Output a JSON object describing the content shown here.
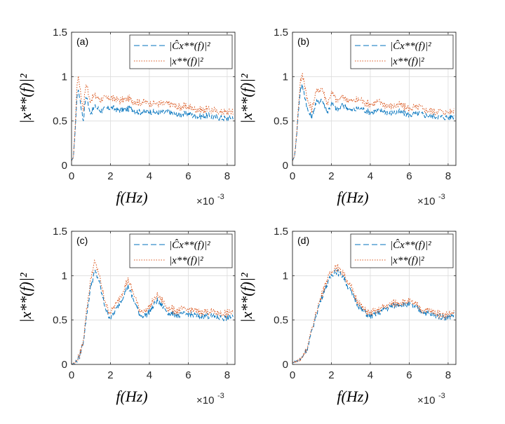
{
  "chart_data": [
    {
      "type": "line",
      "panel_label": "(a)",
      "xlabel": "f(Hz)",
      "x_scale_label": "×10",
      "x_scale_exp": "-3",
      "ylabel": "|x**(f)|²",
      "xlim": [
        0,
        8.4
      ],
      "ylim": [
        0,
        1.5
      ],
      "xticks": [
        "0",
        "2",
        "4",
        "6",
        "8"
      ],
      "yticks": [
        "0",
        "0.5",
        "1",
        "1.5"
      ],
      "grid": true,
      "legend_position": "top-right",
      "series": [
        {
          "name": "|Ĉx**(f)|²",
          "color": "#0072BD",
          "style": "dashed",
          "x": [
            0,
            0.1,
            0.2,
            0.3,
            0.4,
            0.5,
            0.6,
            0.7,
            0.8,
            0.9,
            1.0,
            1.2,
            1.5,
            2.0,
            2.5,
            3.0,
            3.5,
            4.0,
            4.5,
            5.0,
            5.5,
            6.0,
            6.5,
            7.0,
            7.5,
            8.0,
            8.3
          ],
          "y": [
            0.05,
            0.1,
            0.45,
            0.85,
            0.8,
            0.65,
            0.5,
            0.72,
            0.78,
            0.62,
            0.6,
            0.66,
            0.62,
            0.65,
            0.62,
            0.64,
            0.6,
            0.61,
            0.59,
            0.6,
            0.57,
            0.58,
            0.55,
            0.56,
            0.54,
            0.53,
            0.55
          ]
        },
        {
          "name": "|x**(f)|²",
          "color": "#D95319",
          "style": "dotted",
          "x": [
            0,
            0.1,
            0.2,
            0.3,
            0.4,
            0.5,
            0.6,
            0.7,
            0.8,
            0.9,
            1.0,
            1.2,
            1.5,
            2.0,
            2.5,
            3.0,
            3.5,
            4.0,
            4.5,
            5.0,
            5.5,
            6.0,
            6.5,
            7.0,
            7.5,
            8.0,
            8.3
          ],
          "y": [
            0.05,
            0.1,
            0.5,
            1.0,
            0.95,
            0.78,
            0.62,
            0.86,
            0.92,
            0.76,
            0.74,
            0.79,
            0.74,
            0.76,
            0.73,
            0.75,
            0.71,
            0.71,
            0.69,
            0.69,
            0.66,
            0.66,
            0.63,
            0.63,
            0.61,
            0.6,
            0.62
          ]
        }
      ]
    },
    {
      "type": "line",
      "panel_label": "(b)",
      "xlabel": "f(Hz)",
      "x_scale_label": "×10",
      "x_scale_exp": "-3",
      "ylabel": "|x**(f)|²",
      "xlim": [
        0,
        8.4
      ],
      "ylim": [
        0,
        1.5
      ],
      "xticks": [
        "0",
        "2",
        "4",
        "6",
        "8"
      ],
      "yticks": [
        "0",
        "0.5",
        "1",
        "1.5"
      ],
      "grid": true,
      "legend_position": "top-right",
      "series": [
        {
          "name": "|Ĉx**(f)|²",
          "color": "#0072BD",
          "style": "dashed",
          "x": [
            0,
            0.1,
            0.2,
            0.3,
            0.4,
            0.5,
            0.6,
            0.8,
            1.0,
            1.2,
            1.5,
            1.8,
            2.0,
            2.3,
            2.6,
            3.0,
            3.5,
            4.0,
            4.5,
            5.0,
            5.5,
            6.0,
            6.5,
            7.0,
            7.5,
            8.0,
            8.3
          ],
          "y": [
            0.05,
            0.1,
            0.3,
            0.6,
            0.85,
            0.9,
            0.82,
            0.6,
            0.55,
            0.7,
            0.75,
            0.6,
            0.7,
            0.62,
            0.68,
            0.62,
            0.64,
            0.6,
            0.62,
            0.59,
            0.6,
            0.57,
            0.58,
            0.56,
            0.55,
            0.54,
            0.55
          ]
        },
        {
          "name": "|x**(f)|²",
          "color": "#D95319",
          "style": "dotted",
          "x": [
            0,
            0.1,
            0.2,
            0.3,
            0.4,
            0.5,
            0.6,
            0.8,
            1.0,
            1.2,
            1.5,
            1.8,
            2.0,
            2.3,
            2.6,
            3.0,
            3.5,
            4.0,
            4.5,
            5.0,
            5.5,
            6.0,
            6.5,
            7.0,
            7.5,
            8.0,
            8.3
          ],
          "y": [
            0.05,
            0.1,
            0.32,
            0.65,
            0.95,
            1.02,
            0.95,
            0.7,
            0.64,
            0.82,
            0.88,
            0.7,
            0.82,
            0.72,
            0.78,
            0.72,
            0.74,
            0.69,
            0.71,
            0.67,
            0.68,
            0.64,
            0.65,
            0.62,
            0.61,
            0.6,
            0.62
          ]
        }
      ]
    },
    {
      "type": "line",
      "panel_label": "(c)",
      "xlabel": "f(Hz)",
      "x_scale_label": "×10",
      "x_scale_exp": "-3",
      "ylabel": "|x**(f)|²",
      "xlim": [
        0,
        8.4
      ],
      "ylim": [
        0,
        1.5
      ],
      "xticks": [
        "0",
        "2",
        "4",
        "6",
        "8"
      ],
      "yticks": [
        "0",
        "0.5",
        "1",
        "1.5"
      ],
      "grid": true,
      "legend_position": "top-right",
      "series": [
        {
          "name": "|Ĉx**(f)|²",
          "color": "#0072BD",
          "style": "dashed",
          "x": [
            0,
            0.2,
            0.4,
            0.6,
            0.8,
            1.0,
            1.2,
            1.4,
            1.6,
            1.8,
            2.0,
            2.3,
            2.6,
            2.9,
            3.2,
            3.5,
            3.8,
            4.1,
            4.4,
            4.7,
            5.0,
            5.5,
            6.0,
            6.5,
            7.0,
            7.5,
            8.0,
            8.3
          ],
          "y": [
            0.0,
            0.02,
            0.08,
            0.25,
            0.6,
            0.9,
            1.05,
            0.95,
            0.75,
            0.6,
            0.52,
            0.62,
            0.75,
            0.88,
            0.72,
            0.56,
            0.55,
            0.62,
            0.72,
            0.65,
            0.58,
            0.55,
            0.57,
            0.54,
            0.55,
            0.53,
            0.52,
            0.55
          ]
        },
        {
          "name": "|x**(f)|²",
          "color": "#D95319",
          "style": "dotted",
          "x": [
            0,
            0.2,
            0.4,
            0.6,
            0.8,
            1.0,
            1.2,
            1.4,
            1.6,
            1.8,
            2.0,
            2.3,
            2.6,
            2.9,
            3.2,
            3.5,
            3.8,
            4.1,
            4.4,
            4.7,
            5.0,
            5.5,
            6.0,
            6.5,
            7.0,
            7.5,
            8.0,
            8.3
          ],
          "y": [
            0.0,
            0.02,
            0.09,
            0.27,
            0.66,
            0.98,
            1.15,
            1.02,
            0.82,
            0.66,
            0.58,
            0.68,
            0.82,
            0.95,
            0.79,
            0.62,
            0.6,
            0.68,
            0.78,
            0.71,
            0.63,
            0.6,
            0.62,
            0.59,
            0.6,
            0.58,
            0.57,
            0.6
          ]
        }
      ]
    },
    {
      "type": "line",
      "panel_label": "(d)",
      "xlabel": "f(Hz)",
      "x_scale_label": "×10",
      "x_scale_exp": "-3",
      "ylabel": "|x**(f)|²",
      "xlim": [
        0,
        8.4
      ],
      "ylim": [
        0,
        1.5
      ],
      "xticks": [
        "0",
        "2",
        "4",
        "6",
        "8"
      ],
      "yticks": [
        "0",
        "0.5",
        "1",
        "1.5"
      ],
      "grid": true,
      "legend_position": "top-right",
      "series": [
        {
          "name": "|Ĉx**(f)|²",
          "color": "#0072BD",
          "style": "dashed",
          "x": [
            0,
            0.4,
            0.8,
            1.2,
            1.6,
            2.0,
            2.2,
            2.4,
            2.6,
            2.8,
            3.0,
            3.3,
            3.6,
            4.0,
            4.4,
            4.8,
            5.2,
            5.6,
            6.0,
            6.4,
            6.8,
            7.2,
            7.6,
            8.0,
            8.3
          ],
          "y": [
            0.02,
            0.05,
            0.2,
            0.55,
            0.82,
            1.0,
            1.06,
            1.02,
            1.0,
            0.9,
            0.82,
            0.7,
            0.6,
            0.54,
            0.58,
            0.63,
            0.66,
            0.68,
            0.67,
            0.63,
            0.58,
            0.56,
            0.54,
            0.53,
            0.56
          ]
        },
        {
          "name": "|x**(f)|²",
          "color": "#D95319",
          "style": "dotted",
          "x": [
            0,
            0.4,
            0.8,
            1.2,
            1.6,
            2.0,
            2.2,
            2.4,
            2.6,
            2.8,
            3.0,
            3.3,
            3.6,
            4.0,
            4.4,
            4.8,
            5.2,
            5.6,
            6.0,
            6.4,
            6.8,
            7.2,
            7.6,
            8.0,
            8.3
          ],
          "y": [
            0.02,
            0.05,
            0.21,
            0.58,
            0.86,
            1.05,
            1.11,
            1.07,
            1.05,
            0.95,
            0.86,
            0.74,
            0.63,
            0.57,
            0.61,
            0.66,
            0.69,
            0.71,
            0.7,
            0.66,
            0.61,
            0.59,
            0.57,
            0.56,
            0.59
          ]
        }
      ]
    }
  ]
}
